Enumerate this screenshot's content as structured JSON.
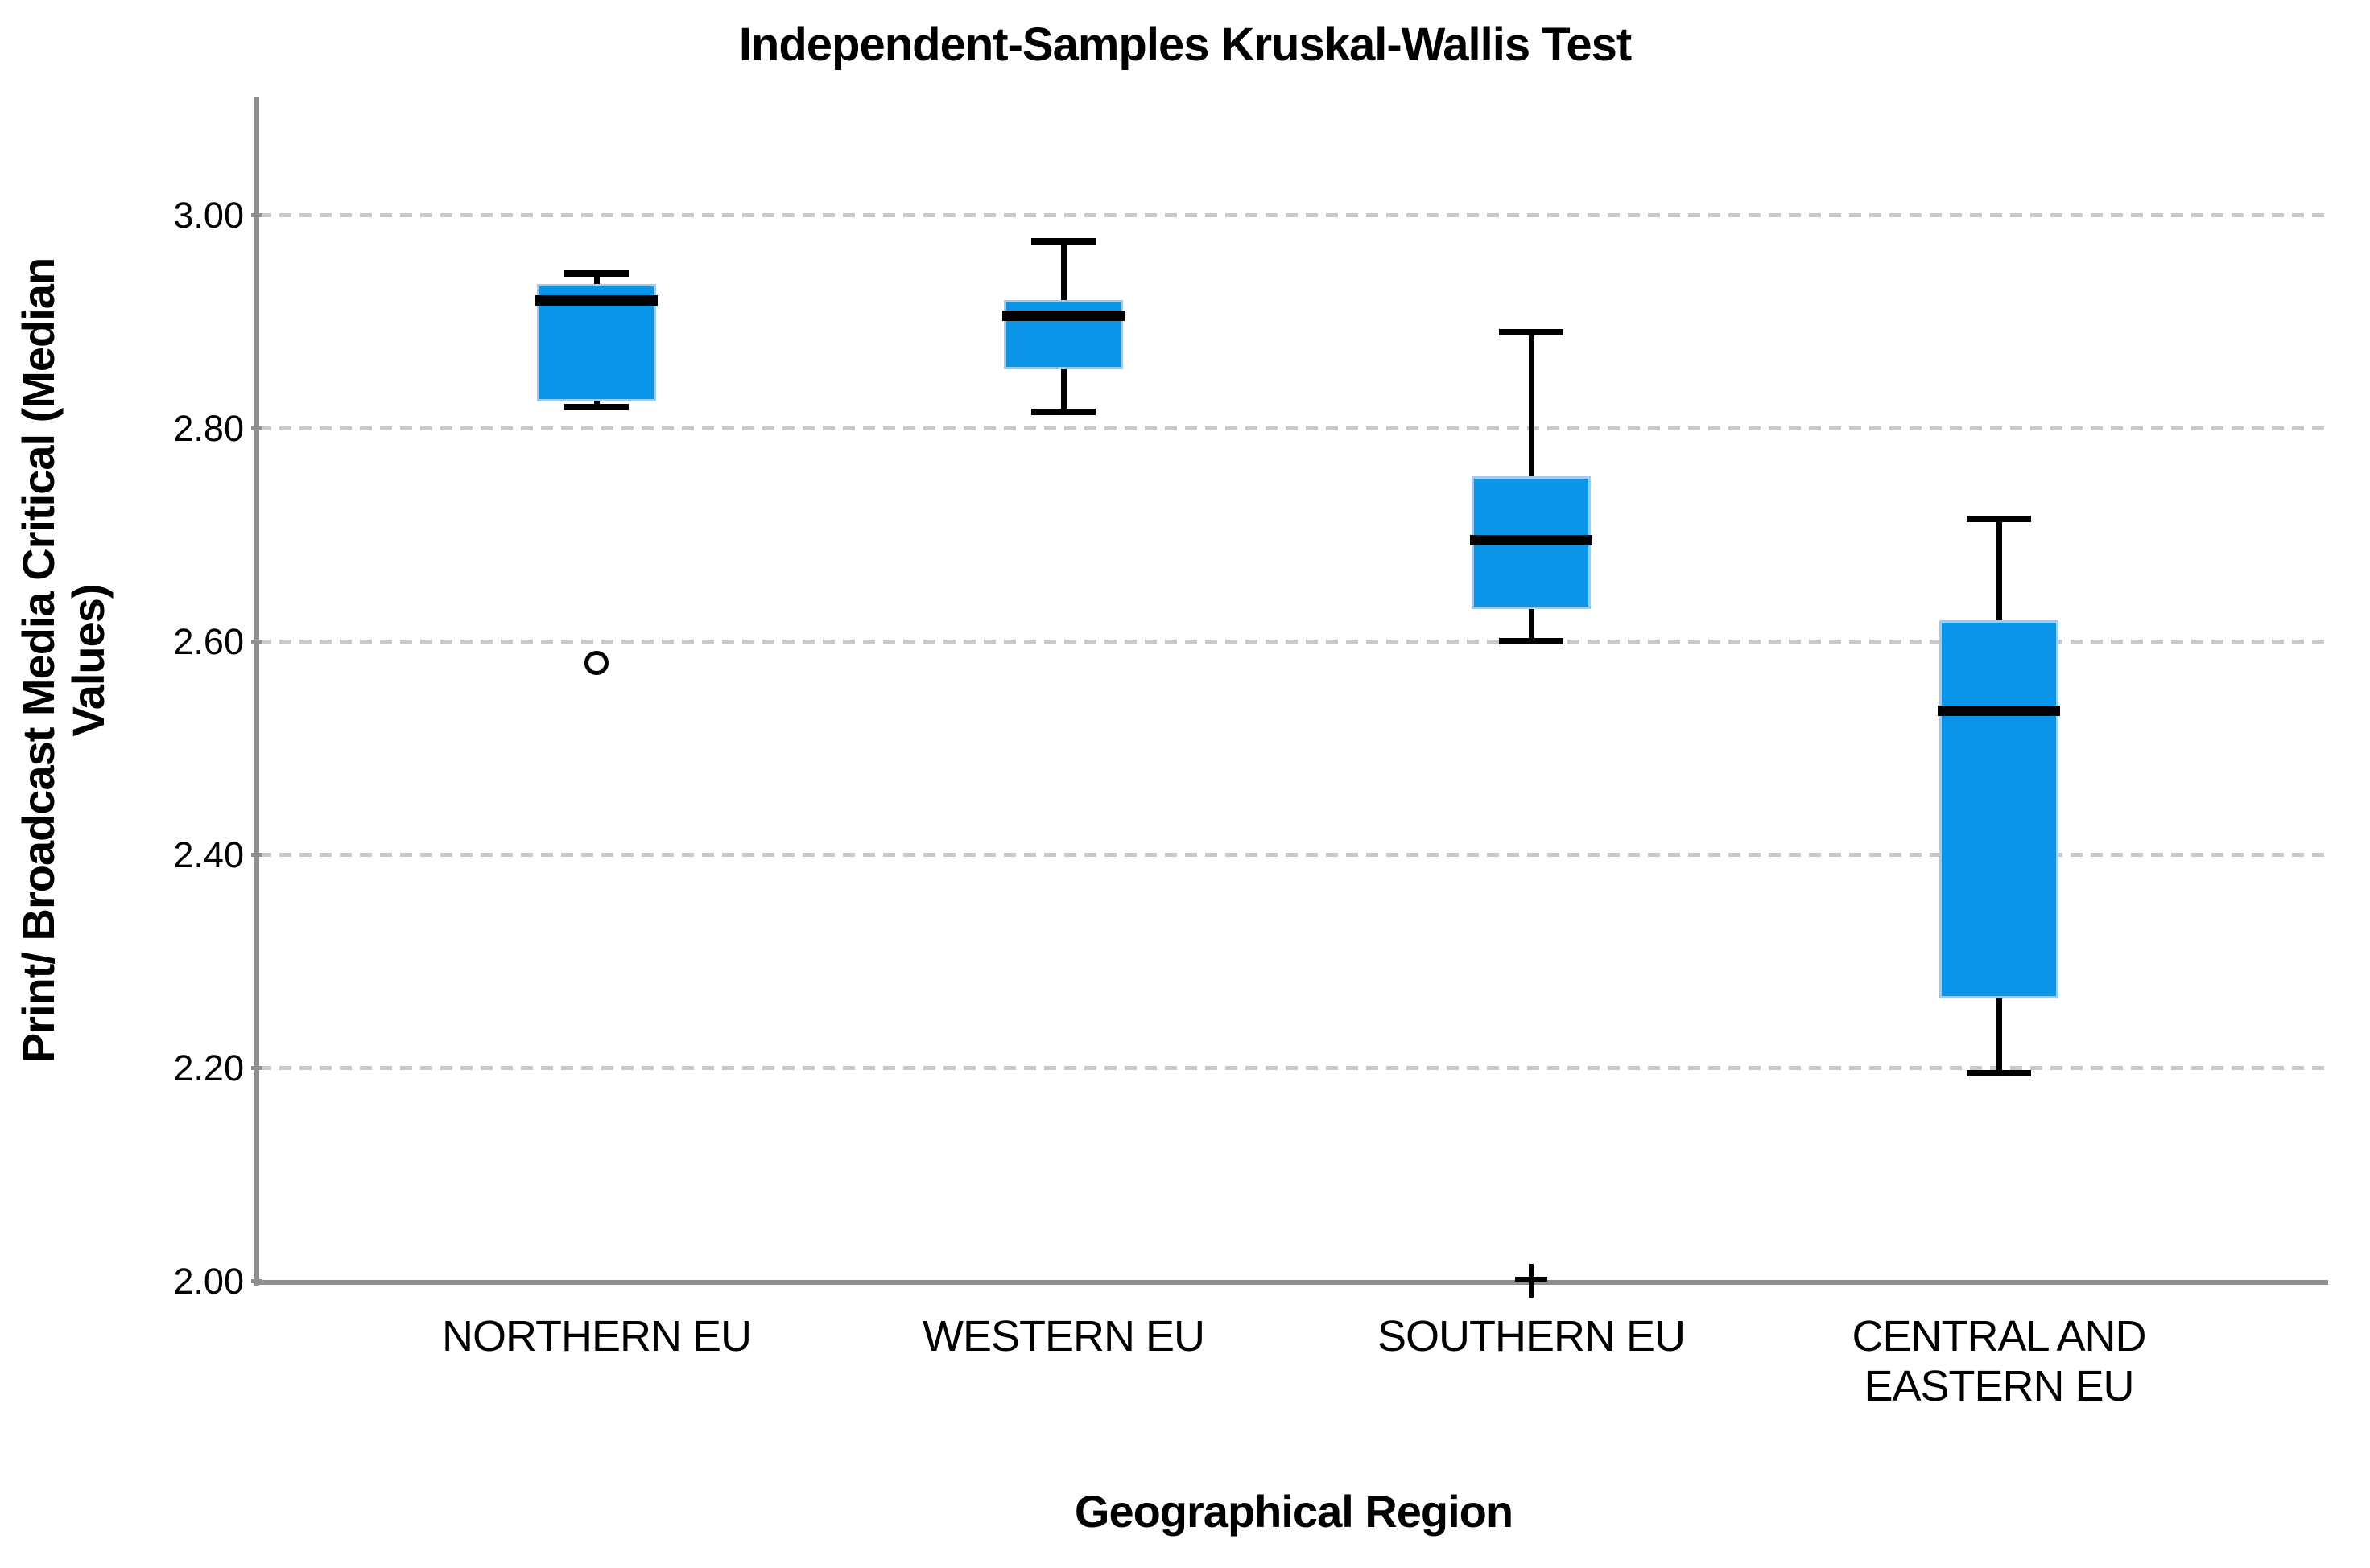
{
  "chart_data": {
    "type": "boxplot",
    "title": "Independent-Samples Kruskal-Wallis Test",
    "xlabel": "Geographical Region",
    "ylabel": "Print/ Broadcast Media Critical (Median Values)",
    "ylabel_lines": [
      "Print/ Broadcast Media Critical (Median",
      "Values)"
    ],
    "ylim": [
      2.0,
      3.11
    ],
    "yticks": [
      3.0,
      2.8,
      2.6,
      2.4,
      2.2,
      2.0
    ],
    "ytick_labels": [
      "3.00",
      "2.80",
      "2.60",
      "2.40",
      "2.20",
      "2.00"
    ],
    "grid": "horizontal-dashed",
    "legend": "none",
    "categories": [
      "NORTHERN EU",
      "WESTERN EU",
      "SOUTHERN EU",
      "CENTRAL AND EASTERN EU"
    ],
    "category_label_lines": [
      [
        "NORTHERN EU"
      ],
      [
        "WESTERN EU"
      ],
      [
        "SOUTHERN EU"
      ],
      [
        "CENTRAL AND",
        "EASTERN EU"
      ]
    ],
    "series": [
      {
        "category": "NORTHERN EU",
        "whisker_low": 2.82,
        "q1": 2.825,
        "median": 2.92,
        "q3": 2.935,
        "whisker_high": 2.945,
        "outliers": [
          {
            "value": 2.58,
            "marker": "circle"
          }
        ]
      },
      {
        "category": "WESTERN EU",
        "whisker_low": 2.815,
        "q1": 2.855,
        "median": 2.905,
        "q3": 2.92,
        "whisker_high": 2.975,
        "outliers": []
      },
      {
        "category": "SOUTHERN EU",
        "whisker_low": 2.6,
        "q1": 2.63,
        "median": 2.695,
        "q3": 2.755,
        "whisker_high": 2.89,
        "outliers": [
          {
            "value": 2.0,
            "marker": "plus"
          }
        ]
      },
      {
        "category": "CENTRAL AND EASTERN EU",
        "whisker_low": 2.195,
        "q1": 2.265,
        "median": 2.535,
        "q3": 2.62,
        "whisker_high": 2.715,
        "outliers": []
      }
    ],
    "colors": {
      "box_fill": "#0A95E8",
      "box_border": "#9FCBF1",
      "median": "#000000",
      "whisker": "#000000",
      "axis": "#8F8F8F",
      "gridline": "#C9C9C9",
      "text": "#000000",
      "background": "#FFFFFF"
    }
  }
}
